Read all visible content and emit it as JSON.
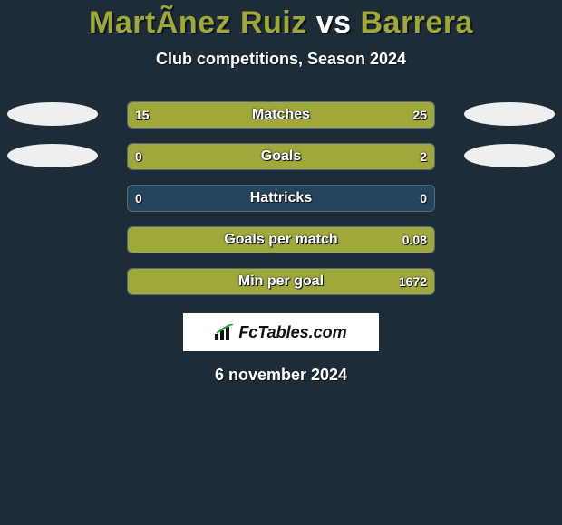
{
  "background_color": "#1e2c38",
  "title": {
    "player1": "MartÃ­nez Ruiz",
    "vs": "vs",
    "player2": "Barrera",
    "font_size": 34,
    "player_color": "#a1a83b",
    "vs_color": "#ffffff"
  },
  "subtitle": {
    "text": "Club competitions, Season 2024",
    "font_size": 18
  },
  "ellipse_color": "#eef0ef",
  "bar_border_color": "#536b7c",
  "bar_bg_color": "#24455c",
  "left_fill_color": "#a1a83b",
  "right_fill_color": "#a1a83b",
  "rows": [
    {
      "label": "Matches",
      "left_val": "15",
      "right_val": "25",
      "left_pct": 37,
      "right_pct": 63,
      "show_ellipses": true
    },
    {
      "label": "Goals",
      "left_val": "0",
      "right_val": "2",
      "left_pct": 0,
      "right_pct": 100,
      "show_ellipses": true
    },
    {
      "label": "Hattricks",
      "left_val": "0",
      "right_val": "0",
      "left_pct": 0,
      "right_pct": 0,
      "show_ellipses": false
    },
    {
      "label": "Goals per match",
      "left_val": "",
      "right_val": "0.08",
      "left_pct": 0,
      "right_pct": 100,
      "show_ellipses": false
    },
    {
      "label": "Min per goal",
      "left_val": "",
      "right_val": "1672",
      "left_pct": 0,
      "right_pct": 100,
      "show_ellipses": false
    }
  ],
  "logo": {
    "text": "FcTables.com",
    "bg": "#ffffff",
    "text_color": "#111111"
  },
  "date": {
    "text": "6 november 2024",
    "font_size": 18
  }
}
